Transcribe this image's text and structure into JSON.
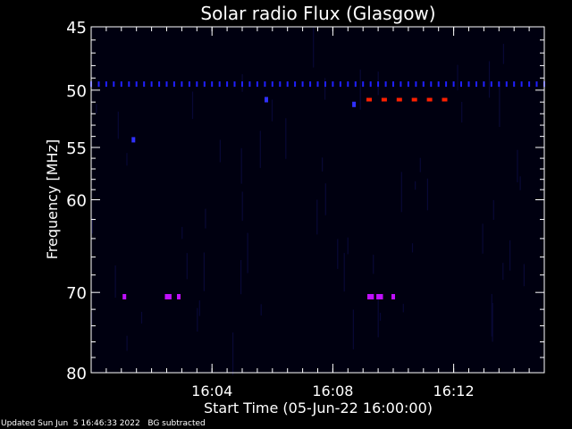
{
  "chart_data": {
    "type": "heatmap",
    "title": "Solar radio Flux (Glasgow)",
    "xlabel": "Start Time (05-Jun-22 16:00:00)",
    "ylabel": "Frequency [MHz]",
    "xlim_minutes": [
      0,
      15
    ],
    "ylim": [
      45,
      80
    ],
    "y_scale": "log",
    "x_ticks": [
      {
        "minute": 4,
        "label": "16:04"
      },
      {
        "minute": 8,
        "label": "16:08"
      },
      {
        "minute": 12,
        "label": "16:12"
      }
    ],
    "y_ticks": [
      {
        "value": 45,
        "label": "45"
      },
      {
        "value": 50,
        "label": "50"
      },
      {
        "value": 55,
        "label": "55"
      },
      {
        "value": 60,
        "label": "60"
      },
      {
        "value": 70,
        "label": "70"
      },
      {
        "value": 80,
        "label": "80"
      }
    ],
    "y_minor_ticks": [
      46,
      47,
      48,
      49,
      51,
      52,
      53,
      54,
      56,
      57,
      58,
      59,
      62,
      64,
      66,
      68,
      72,
      74,
      76,
      78
    ],
    "x_minor_step_minutes": 0.5,
    "bands": [
      {
        "freq": 49.5,
        "x_start": 0.0,
        "x_end": 15.0,
        "step": 0.25,
        "color": "#2020ff"
      },
      {
        "freq": 50.8,
        "x_start": 9.2,
        "x_end": 11.8,
        "step": 0.5,
        "color": "#ff2000"
      }
    ],
    "points": [
      {
        "minute": 1.4,
        "freq": 54.3,
        "color": "#3030ff"
      },
      {
        "minute": 5.8,
        "freq": 50.8,
        "color": "#3030ff"
      },
      {
        "minute": 8.7,
        "freq": 51.2,
        "color": "#3030ff"
      },
      {
        "minute": 1.1,
        "freq": 70.5,
        "color": "#c010ff"
      },
      {
        "minute": 2.5,
        "freq": 70.5,
        "color": "#c010ff"
      },
      {
        "minute": 2.6,
        "freq": 70.5,
        "color": "#c010ff"
      },
      {
        "minute": 2.9,
        "freq": 70.5,
        "color": "#c010ff"
      },
      {
        "minute": 9.2,
        "freq": 70.5,
        "color": "#c010ff"
      },
      {
        "minute": 9.3,
        "freq": 70.5,
        "color": "#c010ff"
      },
      {
        "minute": 9.5,
        "freq": 70.5,
        "color": "#c010ff"
      },
      {
        "minute": 9.6,
        "freq": 70.5,
        "color": "#c010ff"
      },
      {
        "minute": 10.0,
        "freq": 70.5,
        "color": "#c010ff"
      }
    ],
    "grid": false,
    "background_color": "#000010",
    "footer_left": "Updated Sun Jun  5 16:46:33 2022",
    "footer_right": "BG subtracted"
  }
}
